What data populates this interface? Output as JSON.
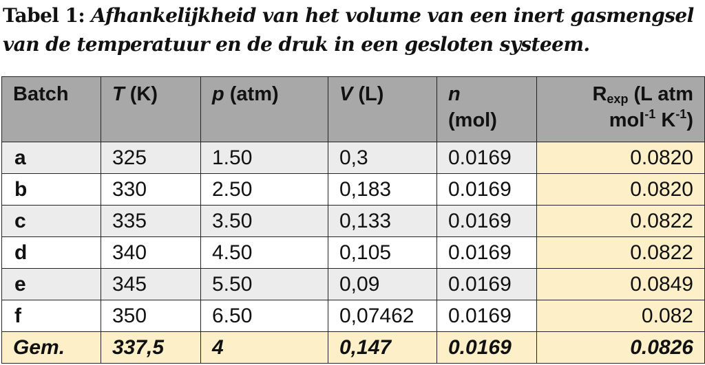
{
  "caption": {
    "label": "Tabel 1:",
    "line1": "Afhankelijkheid van het volume van een inert gasmengsel",
    "line2": "van de temperatuur en de druk in een gesloten systeem."
  },
  "table": {
    "headers": {
      "batch": "Batch",
      "T_symbol": "T",
      "T_unit": " (K)",
      "p_symbol": "p",
      "p_unit": " (atm)",
      "V_symbol": "V",
      "V_unit": " (L)",
      "n_symbol": "n",
      "n_unit": "(mol)",
      "R_symbol": "R",
      "R_sub": "exp",
      "R_unit1": " (L atm",
      "R_mol": "mol",
      "R_sup1": "-1",
      "R_K": " K",
      "R_sup2": "-1",
      "R_close": ")"
    },
    "rows": [
      {
        "batch": "a",
        "T": "325",
        "p": "1.50",
        "V": "0,3",
        "n": "0.0169",
        "R": "0.0820"
      },
      {
        "batch": "b",
        "T": "330",
        "p": "2.50",
        "V": "0,183",
        "n": "0.0169",
        "R": "0.0820"
      },
      {
        "batch": "c",
        "T": "335",
        "p": "3.50",
        "V": "0,133",
        "n": "0.0169",
        "R": "0.0822"
      },
      {
        "batch": "d",
        "T": "340",
        "p": "4.50",
        "V": "0,105",
        "n": "0.0169",
        "R": "0.0822"
      },
      {
        "batch": "e",
        "T": "345",
        "p": "5.50",
        "V": "0,09",
        "n": "0.0169",
        "R": "0.0849"
      },
      {
        "batch": "f",
        "T": "350",
        "p": "6.50",
        "V": "0,07462",
        "n": "0.0169",
        "R": "0.082"
      }
    ],
    "average": {
      "batch": "Gem.",
      "T": "337,5",
      "p": "4",
      "V": "0,147",
      "n": "0.0169",
      "R": "0.0826"
    }
  },
  "colors": {
    "header_bg": "#a8a8a8",
    "stripe_bg": "#ececec",
    "highlight_bg": "#fdefc8"
  }
}
